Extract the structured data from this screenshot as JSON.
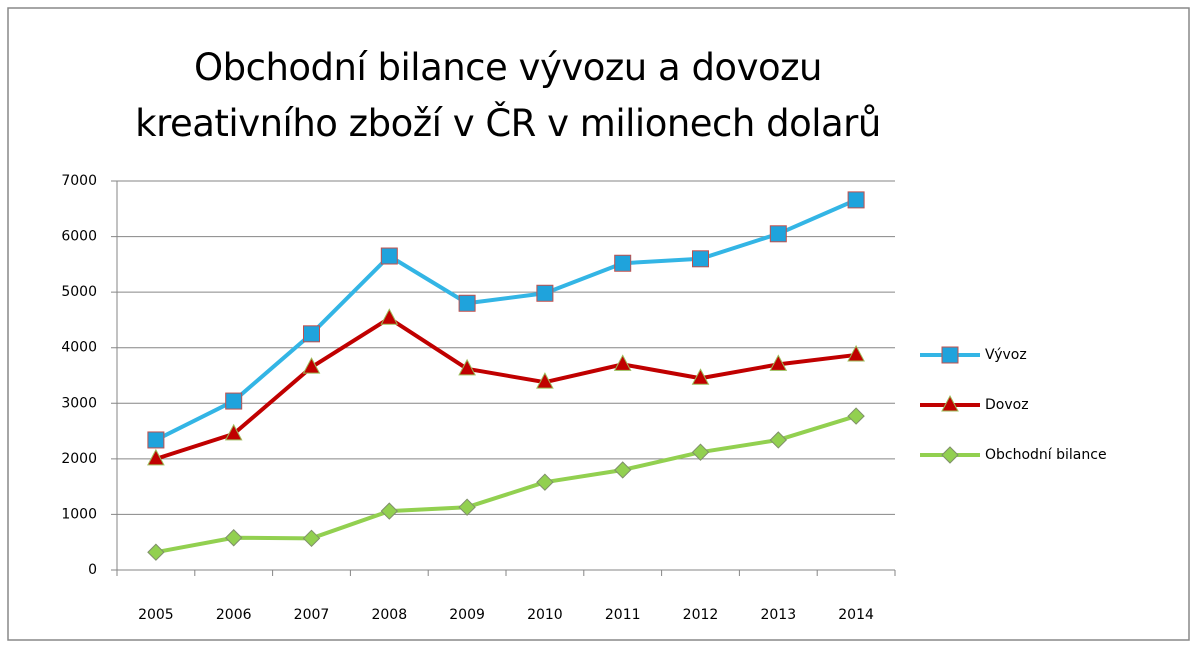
{
  "chart_data": {
    "type": "line",
    "title": "Obchodní bilance vývozu a dovozu kreativního zboží v ČR v milionech dolarů",
    "categories": [
      "2005",
      "2006",
      "2007",
      "2008",
      "2009",
      "2010",
      "2011",
      "2012",
      "2013",
      "2014"
    ],
    "series": [
      {
        "name": "Vývoz",
        "color": "#33b5e5",
        "marker": "square",
        "values": [
          2340,
          3040,
          4250,
          5650,
          4800,
          4980,
          5520,
          5600,
          6050,
          6660
        ]
      },
      {
        "name": "Dovoz",
        "color": "#c00000",
        "marker": "triangle",
        "values": [
          2000,
          2450,
          3650,
          4530,
          3620,
          3380,
          3700,
          3450,
          3700,
          3870
        ]
      },
      {
        "name": "Obchodní bilance",
        "color": "#92d050",
        "marker": "diamond",
        "values": [
          320,
          580,
          570,
          1060,
          1130,
          1580,
          1800,
          2120,
          2340,
          2770
        ]
      }
    ],
    "ylim": [
      0,
      7000
    ],
    "yticks": [
      0,
      1000,
      2000,
      3000,
      4000,
      5000,
      6000,
      7000
    ],
    "grid": true,
    "legend": "right"
  }
}
